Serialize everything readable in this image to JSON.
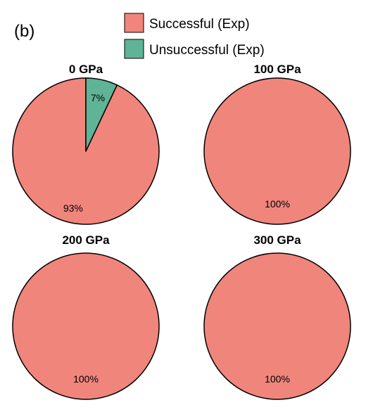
{
  "panel_label": "(b)",
  "colors": {
    "successful": "#F0857B",
    "unsuccessful": "#5FB396",
    "edge": "#000000"
  },
  "legend": [
    {
      "label": "Successful (Exp)",
      "color": "#F0857B"
    },
    {
      "label": "Unsuccessful (Exp)",
      "color": "#5FB396"
    }
  ],
  "chart_data": [
    {
      "type": "pie",
      "title": "0 GPa",
      "slices": [
        {
          "label": "Successful (Exp)",
          "value": 93,
          "text": "93%",
          "color": "#F0857B"
        },
        {
          "label": "Unsuccessful (Exp)",
          "value": 7,
          "text": "7%",
          "color": "#5FB396"
        }
      ]
    },
    {
      "type": "pie",
      "title": "100 GPa",
      "slices": [
        {
          "label": "Successful (Exp)",
          "value": 100,
          "text": "100%",
          "color": "#F0857B"
        }
      ]
    },
    {
      "type": "pie",
      "title": "200 GPa",
      "slices": [
        {
          "label": "Successful (Exp)",
          "value": 100,
          "text": "100%",
          "color": "#F0857B"
        }
      ]
    },
    {
      "type": "pie",
      "title": "300 GPa",
      "slices": [
        {
          "label": "Successful (Exp)",
          "value": 100,
          "text": "100%",
          "color": "#F0857B"
        }
      ]
    }
  ]
}
